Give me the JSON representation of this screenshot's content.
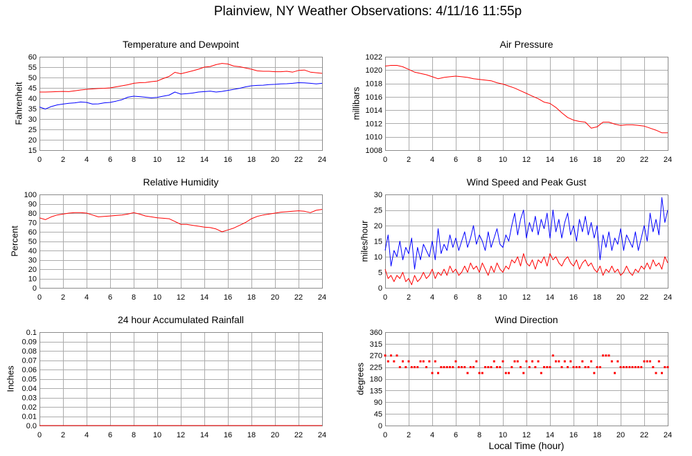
{
  "page": {
    "title": "Plainview, NY Weather Observations: 4/11/16 11:55p"
  },
  "chart_data": [
    {
      "type": "line",
      "title": "Temperature and Dewpoint",
      "xlabel": "",
      "ylabel": "Fahrenheit",
      "xlim": [
        0,
        24
      ],
      "ylim": [
        15,
        60
      ],
      "grid": true,
      "xticks": [
        "0",
        "2",
        "4",
        "6",
        "8",
        "10",
        "12",
        "14",
        "16",
        "18",
        "20",
        "22",
        "24"
      ],
      "yticks": [
        "15",
        "20",
        "25",
        "30",
        "35",
        "40",
        "45",
        "50",
        "55",
        "60"
      ],
      "x": [
        0,
        0.5,
        1,
        1.5,
        2,
        2.5,
        3,
        3.5,
        4,
        4.5,
        5,
        5.5,
        6,
        6.5,
        7,
        7.5,
        8,
        8.5,
        9,
        9.5,
        10,
        10.5,
        11,
        11.5,
        12,
        12.5,
        13,
        13.5,
        14,
        14.5,
        15,
        15.5,
        16,
        16.5,
        17,
        17.5,
        18,
        18.5,
        19,
        19.5,
        20,
        20.5,
        21,
        21.5,
        22,
        22.5,
        23,
        23.5,
        24
      ],
      "series": [
        {
          "color": "#ff0000",
          "values": [
            43,
            43,
            43.1,
            43.2,
            43.3,
            43.2,
            43.6,
            44,
            44.3,
            44.5,
            44.7,
            44.8,
            45,
            45.5,
            46,
            46.5,
            47.2,
            47.5,
            47.6,
            48,
            48.3,
            49.5,
            50.5,
            52.5,
            51.8,
            52.5,
            53.2,
            54,
            55,
            55.3,
            56.2,
            56.8,
            56.5,
            55.5,
            55.2,
            54.6,
            54,
            53.2,
            53,
            53,
            52.8,
            52.8,
            53,
            52.6,
            53.4,
            53.6,
            52.6,
            52.3,
            52
          ]
        },
        {
          "color": "#0000ff",
          "values": [
            35.8,
            34.8,
            36,
            36.8,
            37.2,
            37.6,
            37.8,
            38.2,
            38,
            37.2,
            37.3,
            37.8,
            38,
            38.6,
            39.3,
            40.5,
            41,
            40.8,
            40.5,
            40.2,
            40.4,
            41,
            41.5,
            43,
            42,
            42.2,
            42.5,
            43,
            43.2,
            43.4,
            43,
            43.3,
            43.8,
            44.3,
            44.8,
            45.5,
            46,
            46.2,
            46.3,
            46.6,
            46.7,
            46.9,
            47,
            47.2,
            47.5,
            47.4,
            47.2,
            46.9,
            47.2
          ]
        }
      ]
    },
    {
      "type": "line",
      "title": "Air Pressure",
      "xlabel": "",
      "ylabel": "millibars",
      "xlim": [
        0,
        24
      ],
      "ylim": [
        1008,
        1022
      ],
      "grid": true,
      "xticks": [
        "0",
        "2",
        "4",
        "6",
        "8",
        "10",
        "12",
        "14",
        "16",
        "18",
        "20",
        "22",
        "24"
      ],
      "yticks": [
        "1008",
        "1010",
        "1012",
        "1014",
        "1016",
        "1018",
        "1020",
        "1022"
      ],
      "x": [
        0,
        0.5,
        1,
        1.5,
        2,
        2.5,
        3,
        3.5,
        4,
        4.5,
        5,
        5.5,
        6,
        6.5,
        7,
        7.5,
        8,
        8.5,
        9,
        9.5,
        10,
        10.5,
        11,
        11.5,
        12,
        12.5,
        13,
        13.5,
        14,
        14.5,
        15,
        15.5,
        16,
        16.5,
        17,
        17.5,
        18,
        18.5,
        19,
        19.5,
        20,
        20.5,
        21,
        21.5,
        22,
        22.5,
        23,
        23.5,
        24
      ],
      "series": [
        {
          "color": "#ff0000",
          "values": [
            1020.6,
            1020.7,
            1020.7,
            1020.5,
            1020.1,
            1019.7,
            1019.5,
            1019.3,
            1019,
            1018.7,
            1018.9,
            1019,
            1019.1,
            1019,
            1018.9,
            1018.7,
            1018.6,
            1018.5,
            1018.4,
            1018.1,
            1017.9,
            1017.6,
            1017.3,
            1016.9,
            1016.5,
            1016.1,
            1015.7,
            1015.2,
            1015,
            1014.4,
            1013.6,
            1012.9,
            1012.5,
            1012.3,
            1012.2,
            1011.3,
            1011.5,
            1012.2,
            1012.2,
            1011.9,
            1011.7,
            1011.8,
            1011.8,
            1011.7,
            1011.6,
            1011.3,
            1011,
            1010.6,
            1010.6
          ]
        }
      ]
    },
    {
      "type": "line",
      "title": "Relative Humidity",
      "xlabel": "",
      "ylabel": "Percent",
      "xlim": [
        0,
        24
      ],
      "ylim": [
        0,
        100
      ],
      "grid": true,
      "xticks": [
        "0",
        "2",
        "4",
        "6",
        "8",
        "10",
        "12",
        "14",
        "16",
        "18",
        "20",
        "22",
        "24"
      ],
      "yticks": [
        "0",
        "10",
        "20",
        "30",
        "40",
        "50",
        "60",
        "70",
        "80",
        "90",
        "100"
      ],
      "x": [
        0,
        0.5,
        1,
        1.5,
        2,
        2.5,
        3,
        3.5,
        4,
        4.5,
        5,
        5.5,
        6,
        6.5,
        7,
        7.5,
        8,
        8.5,
        9,
        9.5,
        10,
        10.5,
        11,
        11.5,
        12,
        12.5,
        13,
        13.5,
        14,
        14.5,
        15,
        15.5,
        16,
        16.5,
        17,
        17.5,
        18,
        18.5,
        19,
        19.5,
        20,
        20.5,
        21,
        21.5,
        22,
        22.5,
        23,
        23.5,
        24
      ],
      "series": [
        {
          "color": "#ff0000",
          "values": [
            75,
            73,
            76,
            78,
            79,
            80,
            80.5,
            80.5,
            80,
            78,
            76,
            76.5,
            77,
            77.5,
            78,
            79,
            80.5,
            79,
            77,
            76,
            75,
            74.5,
            74,
            71,
            68,
            68,
            67,
            66,
            65,
            64.5,
            63,
            60,
            62,
            64,
            67,
            70,
            74,
            76.5,
            78,
            79,
            80,
            81,
            81.5,
            82,
            82.5,
            82,
            80.5,
            83,
            84
          ]
        }
      ]
    },
    {
      "type": "line",
      "title": "Wind Speed and Peak Gust",
      "xlabel": "",
      "ylabel": "miles/hour",
      "xlim": [
        0,
        24
      ],
      "ylim": [
        0,
        30
      ],
      "grid": true,
      "xticks": [
        "0",
        "2",
        "4",
        "6",
        "8",
        "10",
        "12",
        "14",
        "16",
        "18",
        "20",
        "22",
        "24"
      ],
      "yticks": [
        "0",
        "5",
        "10",
        "15",
        "20",
        "25",
        "30"
      ],
      "x": [
        0,
        0.25,
        0.5,
        0.75,
        1,
        1.25,
        1.5,
        1.75,
        2,
        2.25,
        2.5,
        2.75,
        3,
        3.25,
        3.5,
        3.75,
        4,
        4.25,
        4.5,
        4.75,
        5,
        5.25,
        5.5,
        5.75,
        6,
        6.25,
        6.5,
        6.75,
        7,
        7.25,
        7.5,
        7.75,
        8,
        8.25,
        8.5,
        8.75,
        9,
        9.25,
        9.5,
        9.75,
        10,
        10.25,
        10.5,
        10.75,
        11,
        11.25,
        11.5,
        11.75,
        12,
        12.25,
        12.5,
        12.75,
        13,
        13.25,
        13.5,
        13.75,
        14,
        14.25,
        14.5,
        14.75,
        15,
        15.25,
        15.5,
        15.75,
        16,
        16.25,
        16.5,
        16.75,
        17,
        17.25,
        17.5,
        17.75,
        18,
        18.25,
        18.5,
        18.75,
        19,
        19.25,
        19.5,
        19.75,
        20,
        20.25,
        20.5,
        20.75,
        21,
        21.25,
        21.5,
        21.75,
        22,
        22.25,
        22.5,
        22.75,
        23,
        23.25,
        23.5,
        23.75,
        24
      ],
      "series": [
        {
          "color": "#0000ff",
          "values": [
            12,
            17,
            7,
            12,
            10,
            15,
            9,
            13,
            11,
            16,
            6,
            13,
            9,
            14,
            12,
            10,
            15,
            9,
            19,
            11,
            14,
            12,
            17,
            13,
            16,
            12,
            15,
            18,
            13,
            16,
            20,
            14,
            17,
            15,
            12,
            18,
            13,
            16,
            19,
            14,
            13,
            17,
            15,
            20,
            24,
            17,
            22,
            25,
            16,
            21,
            18,
            23,
            17,
            22,
            19,
            24,
            16,
            25,
            18,
            22,
            16,
            21,
            24,
            17,
            20,
            15,
            22,
            18,
            23,
            17,
            21,
            16,
            20,
            9,
            17,
            13,
            18,
            12,
            16,
            14,
            19,
            12,
            17,
            15,
            13,
            18,
            12,
            16,
            20,
            15,
            24,
            18,
            22,
            17,
            29,
            21,
            25
          ]
        },
        {
          "color": "#ff0000",
          "values": [
            6,
            3,
            4,
            2,
            4,
            3,
            5,
            2,
            3,
            1,
            4,
            2,
            3,
            5,
            3,
            4,
            6,
            3,
            5,
            4,
            6,
            4,
            7,
            5,
            6,
            4,
            5,
            7,
            5,
            8,
            6,
            7,
            5,
            8,
            6,
            4,
            7,
            5,
            8,
            6,
            5,
            7,
            6,
            9,
            8,
            10,
            7,
            11,
            8,
            7,
            9,
            6,
            9,
            8,
            10,
            7,
            11,
            9,
            10,
            8,
            7,
            9,
            10,
            8,
            7,
            9,
            6,
            8,
            9,
            7,
            8,
            6,
            5,
            7,
            4,
            6,
            5,
            7,
            5,
            6,
            4,
            5,
            7,
            5,
            4,
            6,
            5,
            7,
            6,
            8,
            6,
            9,
            7,
            8,
            6,
            10,
            8
          ]
        }
      ]
    },
    {
      "type": "line",
      "title": "24 hour Accumulated Rainfall",
      "xlabel": "",
      "ylabel": "Inches",
      "xlim": [
        0,
        24
      ],
      "ylim": [
        0,
        0.1
      ],
      "grid": true,
      "xticks": [
        "0",
        "2",
        "4",
        "6",
        "8",
        "10",
        "12",
        "14",
        "16",
        "18",
        "20",
        "22",
        "24"
      ],
      "yticks": [
        "0.0",
        "0.01",
        "0.02",
        "0.03",
        "0.04",
        "0.05",
        "0.06",
        "0.07",
        "0.08",
        "0.09",
        "0.1"
      ],
      "x": [
        0,
        24
      ],
      "series": [
        {
          "color": "#ff0000",
          "values": [
            0,
            0
          ]
        }
      ]
    },
    {
      "type": "scatter",
      "title": "Wind Direction",
      "xlabel": "Local Time (hour)",
      "ylabel": "degrees",
      "xlim": [
        0,
        24
      ],
      "ylim": [
        0,
        360
      ],
      "grid": true,
      "xticks": [
        "0",
        "2",
        "4",
        "6",
        "8",
        "10",
        "12",
        "14",
        "16",
        "18",
        "20",
        "22",
        "24"
      ],
      "yticks": [
        "0",
        "45",
        "90",
        "135",
        "180",
        "225",
        "270",
        "315",
        "360"
      ],
      "x": [
        0,
        0.25,
        0.5,
        0.75,
        1,
        1.25,
        1.5,
        1.75,
        2,
        2.25,
        2.5,
        2.75,
        3,
        3.25,
        3.5,
        3.75,
        4,
        4.25,
        4.5,
        4.75,
        5,
        5.25,
        5.5,
        5.75,
        6,
        6.25,
        6.5,
        6.75,
        7,
        7.25,
        7.5,
        7.75,
        8,
        8.25,
        8.5,
        8.75,
        9,
        9.25,
        9.5,
        9.75,
        10,
        10.25,
        10.5,
        10.75,
        11,
        11.25,
        11.5,
        11.75,
        12,
        12.25,
        12.5,
        12.75,
        13,
        13.25,
        13.5,
        13.75,
        14,
        14.25,
        14.5,
        14.75,
        15,
        15.25,
        15.5,
        15.75,
        16,
        16.25,
        16.5,
        16.75,
        17,
        17.25,
        17.5,
        17.75,
        18,
        18.25,
        18.5,
        18.75,
        19,
        19.25,
        19.5,
        19.75,
        20,
        20.25,
        20.5,
        20.75,
        21,
        21.25,
        21.5,
        21.75,
        22,
        22.25,
        22.5,
        22.75,
        23,
        23.25,
        23.5,
        23.75,
        24
      ],
      "series": [
        {
          "color": "#ff0000",
          "values": [
            270,
            247.5,
            270,
            247.5,
            270,
            225,
            247.5,
            225,
            247.5,
            225,
            225,
            225,
            247.5,
            247.5,
            225,
            247.5,
            202.5,
            247.5,
            202.5,
            225,
            225,
            225,
            225,
            225,
            247.5,
            225,
            225,
            225,
            202.5,
            225,
            225,
            247.5,
            202.5,
            202.5,
            225,
            225,
            225,
            247.5,
            225,
            225,
            247.5,
            202.5,
            202.5,
            225,
            247.5,
            247.5,
            225,
            202.5,
            247.5,
            225,
            247.5,
            225,
            247.5,
            202.5,
            225,
            225,
            225,
            270,
            247.5,
            247.5,
            225,
            247.5,
            225,
            247.5,
            225,
            225,
            225,
            247.5,
            225,
            225,
            247.5,
            202.5,
            225,
            225,
            270,
            270,
            270,
            247.5,
            202.5,
            247.5,
            225,
            225,
            225,
            225,
            225,
            225,
            225,
            225,
            247.5,
            247.5,
            247.5,
            225,
            202.5,
            247.5,
            202.5,
            225,
            225
          ]
        }
      ]
    }
  ]
}
